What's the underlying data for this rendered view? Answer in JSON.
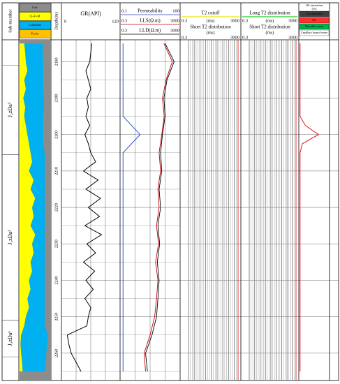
{
  "chart_data": {
    "type": "well-log",
    "depth_label": "Depth(m)",
    "depth_lim": [
      2174,
      2267.5
    ],
    "depth_ticks": [
      2180,
      2190,
      2200,
      2210,
      2220,
      2230,
      2240,
      2250,
      2260
    ],
    "depths": [
      2175,
      2177.5,
      2180,
      2182.5,
      2185,
      2187.5,
      2190,
      2192.5,
      2195,
      2197.5,
      2200,
      2202.5,
      2205,
      2207.5,
      2210,
      2212.5,
      2215,
      2217.5,
      2220,
      2222.5,
      2225,
      2227.5,
      2230,
      2232.5,
      2235,
      2237.5,
      2240,
      2242.5,
      2245,
      2247.5,
      2250,
      2252.5,
      2255,
      2257.5,
      2260,
      2262.5,
      2265
    ],
    "sub_member": {
      "title": "Sub-member",
      "units": [
        {
          "name": "J₂zDa³",
          "top": 2181,
          "base": 2205.5
        },
        {
          "name": "J₂zDa²",
          "top": 2205.5,
          "base": 2251
        },
        {
          "name": "J₂zDa¹",
          "top": 2251,
          "base": 2261
        }
      ]
    },
    "lithology": {
      "legend": [
        {
          "name": "Calc",
          "color": "#8c8c8c"
        },
        {
          "name": "Q+F+M",
          "color": "#ffff00"
        },
        {
          "name": "Carbonate",
          "color": "#00b0f0"
        },
        {
          "name": "Pyrite",
          "color": "#ffc000"
        }
      ],
      "xlim": [
        0,
        100
      ],
      "qfm": [
        15,
        18,
        20,
        25,
        15,
        20,
        12,
        18,
        15,
        20,
        25,
        30,
        35,
        40,
        30,
        45,
        35,
        50,
        40,
        45,
        35,
        50,
        40,
        45,
        35,
        40,
        30,
        35,
        25,
        30,
        20,
        15,
        5,
        3,
        5,
        8,
        10
      ],
      "carbonate": [
        60,
        55,
        55,
        50,
        60,
        55,
        65,
        60,
        60,
        55,
        50,
        45,
        45,
        40,
        50,
        35,
        45,
        30,
        40,
        35,
        45,
        30,
        40,
        35,
        45,
        40,
        50,
        45,
        55,
        50,
        60,
        65,
        85,
        85,
        80,
        75,
        70
      ]
    },
    "gr": {
      "label": "GR(API)",
      "xlim": [
        0,
        120
      ],
      "color": "#000000",
      "values": [
        62,
        60,
        58,
        50,
        55,
        60,
        52,
        55,
        50,
        58,
        48,
        55,
        60,
        70,
        45,
        75,
        50,
        80,
        55,
        78,
        48,
        82,
        52,
        70,
        45,
        68,
        50,
        65,
        48,
        60,
        55,
        52,
        12,
        15,
        20,
        30,
        40
      ]
    },
    "res_depths": [
      2175,
      2180,
      2185,
      2190,
      2195,
      2200,
      2205,
      2210,
      2215,
      2220,
      2225,
      2230,
      2235,
      2240,
      2245,
      2250,
      2255,
      2260,
      2265
    ],
    "resistivity": {
      "log": true,
      "curves": [
        {
          "name": "Permeability",
          "xlim": [
            0.1,
            100
          ],
          "color": "#1f3fbf",
          "values": [
            0.14,
            0.14,
            0.14,
            0.14,
            0.14,
            1,
            0.14,
            0.14,
            0.14,
            0.14,
            0.14,
            0.14,
            0.14,
            0.14,
            0.14,
            0.14,
            0.14,
            0.14,
            0.14
          ]
        },
        {
          "name": "LLS(Ω.m)",
          "xlim": [
            0.3,
            3000
          ],
          "color": "#c00000",
          "values": [
            250,
            900,
            350,
            200,
            260,
            180,
            120,
            150,
            100,
            120,
            80,
            110,
            70,
            100,
            80,
            60,
            30,
            12,
            15
          ]
        },
        {
          "name": "LLD(Ω.m)",
          "xlim": [
            0.3,
            3000
          ],
          "color": "#000000",
          "values": [
            300,
            1200,
            400,
            250,
            300,
            200,
            150,
            180,
            120,
            150,
            100,
            130,
            90,
            120,
            100,
            80,
            40,
            15,
            20
          ]
        }
      ]
    },
    "t2": [
      {
        "title": "T2 cutoff",
        "unit": "(ms)",
        "xlim": [
          0.3,
          3000
        ],
        "subtitle": "Short T2 distribution",
        "sub_unit": "(ms)",
        "sub_xlim": [
          0.3,
          3000
        ],
        "color": "#e8e800"
      },
      {
        "title": "Long T2 distribution",
        "unit": "(ms)",
        "xlim": [
          0.3,
          3000
        ],
        "subtitle": "Short T2 distribution",
        "sub_unit": "(ms)",
        "sub_xlim": [
          0.3,
          3000
        ],
        "color": "#22cc22"
      }
    ],
    "saturation": {
      "title": "Oil saturation",
      "unit": "(%)",
      "xlim": [
        0,
        100
      ],
      "color": "#e00000",
      "legend": [
        {
          "name": "Gas saturation",
          "color": "#404040"
        },
        {
          "name": "Oil",
          "color": "#ff3030"
        },
        {
          "name": "Movable water",
          "color": "#00b050"
        },
        {
          "name": "Capillary bound water",
          "color": "#ffffff"
        }
      ],
      "values": [
        2,
        2,
        2,
        2,
        2,
        2,
        2,
        2,
        2,
        20,
        65,
        10,
        2,
        2,
        2,
        2,
        2,
        2,
        2,
        2,
        2,
        2,
        2,
        2,
        2,
        2,
        2,
        2,
        2,
        2,
        2,
        2,
        2,
        2,
        2,
        2,
        2
      ]
    }
  }
}
